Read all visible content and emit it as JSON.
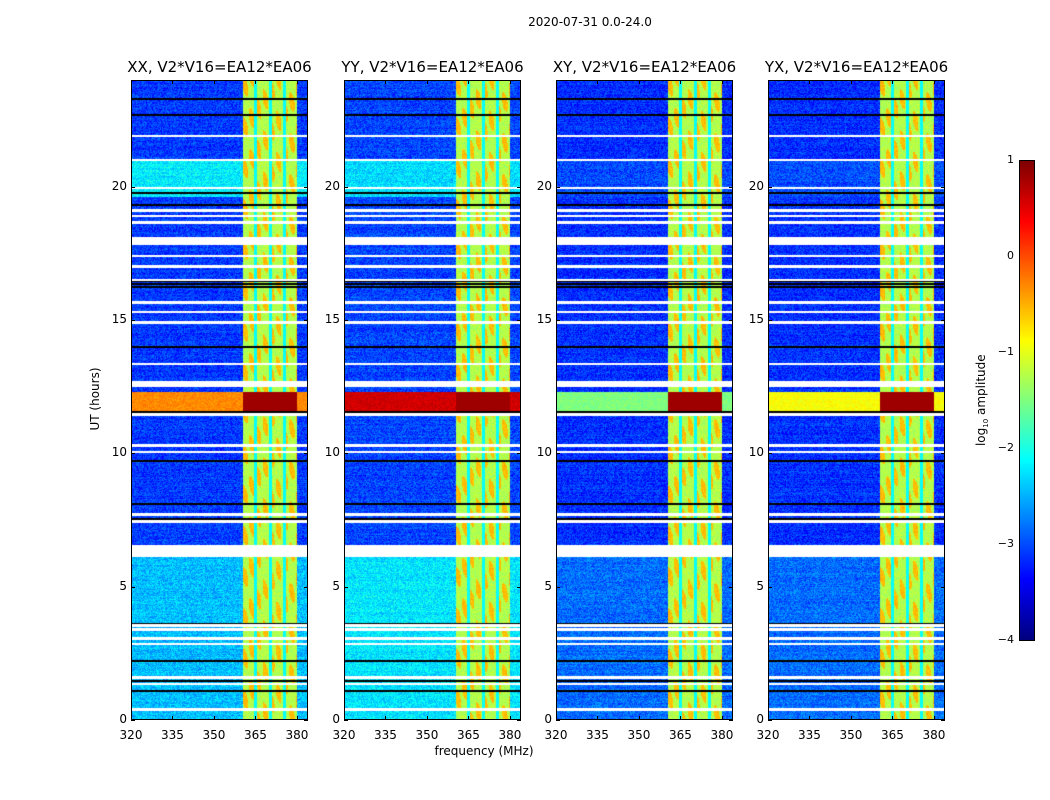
{
  "chart_data": {
    "type": "heatmap",
    "title": "2020-07-31 0.0-24.0",
    "xlabel": "frequency (MHz)",
    "ylabel": "UT (hours)",
    "xlim": [
      320,
      384
    ],
    "ylim": [
      0,
      24
    ],
    "xticks": [
      "320",
      "335",
      "350",
      "365",
      "380"
    ],
    "xtick_values": [
      320,
      335,
      350,
      365,
      380
    ],
    "yticks": [
      "0",
      "5",
      "10",
      "15",
      "20"
    ],
    "ytick_values": [
      0,
      5,
      10,
      15,
      20
    ],
    "panels": [
      {
        "title": "XX, V2*V16=EA12*EA06",
        "bg": -3.1,
        "low_band_level": -2.45,
        "cyan_block_level": -2.2,
        "rfi_stripe_level": -0.3
      },
      {
        "title": "YY, V2*V16=EA12*EA06",
        "bg": -3.05,
        "low_band_level": -2.25,
        "cyan_block_level": -2.3,
        "rfi_stripe_level": 0.6
      },
      {
        "title": "XY, V2*V16=EA12*EA06",
        "bg": -3.15,
        "low_band_level": -2.85,
        "cyan_block_level": -3.0,
        "rfi_stripe_level": -1.5
      },
      {
        "title": "YX, V2*V16=EA12*EA06",
        "bg": -3.15,
        "low_band_level": -2.85,
        "cyan_block_level": -3.0,
        "rfi_stripe_level": -0.9
      }
    ],
    "rfi_band_mhz": [
      360.5,
      380
    ],
    "rfi_gaps_mhz": [
      365,
      370.5,
      375.5
    ],
    "strong_rfi_hours": [
      11.5,
      12.3
    ],
    "flagged_hours": [
      [
        6.1,
        6.55
      ],
      [
        17.8,
        18.12
      ]
    ],
    "flag_lines_hours": [
      0.4,
      1.35,
      1.6,
      2.85,
      3.05,
      3.4,
      3.55,
      7.45,
      7.7,
      10.3,
      10.05,
      11.45,
      12.55,
      12.65,
      13.35,
      14.9,
      15.3,
      15.65,
      16.5,
      17.0,
      17.4,
      18.65,
      18.9,
      19.1,
      19.95,
      21.0,
      21.9
    ],
    "dark_lines_hours": [
      1.1,
      1.45,
      2.2,
      3.6,
      7.55,
      8.1,
      9.7,
      11.55,
      14.0,
      16.25,
      16.35,
      16.45,
      19.3,
      19.75,
      22.7,
      23.3
    ],
    "colorbar": {
      "label": "log10 amplitude",
      "label_main": "log",
      "label_sub": "10",
      "label_rest": " amplitude",
      "range": [
        -4,
        1
      ],
      "ticks": [
        "1",
        "0",
        "−1",
        "−2",
        "−3",
        "−4"
      ],
      "tick_values": [
        1,
        0,
        -1,
        -2,
        -3,
        -4
      ],
      "colormap": "jet"
    }
  }
}
